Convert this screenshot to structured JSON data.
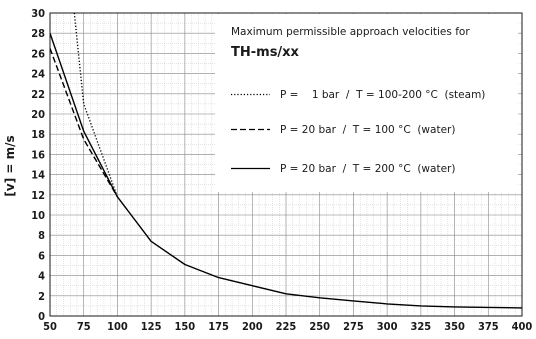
{
  "chart_data": {
    "type": "line",
    "title": "",
    "xlabel": "",
    "ylabel": "[v] = m/s",
    "xlim": [
      50,
      400
    ],
    "ylim": [
      0,
      30
    ],
    "xticks": [
      50,
      75,
      100,
      125,
      150,
      175,
      200,
      225,
      250,
      275,
      300,
      325,
      350,
      375,
      400
    ],
    "yticks": [
      0,
      2,
      4,
      6,
      8,
      10,
      12,
      14,
      16,
      18,
      20,
      22,
      24,
      26,
      28,
      30
    ],
    "grid": true,
    "legend_position": "top-right",
    "annotation": {
      "line1": "Maximum permissible approach velocities for",
      "line2": "TH-ms/xx"
    },
    "series": [
      {
        "name": "P =    1 bar  /  T = 100-200 °C  (steam)",
        "style": "dotted",
        "x": [
          68,
          75,
          100
        ],
        "y": [
          30,
          21,
          11.8
        ]
      },
      {
        "name": "P = 20 bar  /  T = 100 °C  (water)",
        "style": "dashed",
        "x": [
          50,
          75,
          100
        ],
        "y": [
          26.5,
          17.5,
          11.8
        ]
      },
      {
        "name": "P = 20 bar  /  T = 200 °C  (water)",
        "style": "solid",
        "x": [
          50,
          75,
          100,
          125,
          150,
          175,
          200,
          225,
          250,
          275,
          300,
          325,
          350,
          375,
          400
        ],
        "y": [
          28,
          18.3,
          11.8,
          7.4,
          5.1,
          3.8,
          3.0,
          2.2,
          1.8,
          1.5,
          1.2,
          1.0,
          0.9,
          0.85,
          0.8
        ]
      }
    ]
  }
}
